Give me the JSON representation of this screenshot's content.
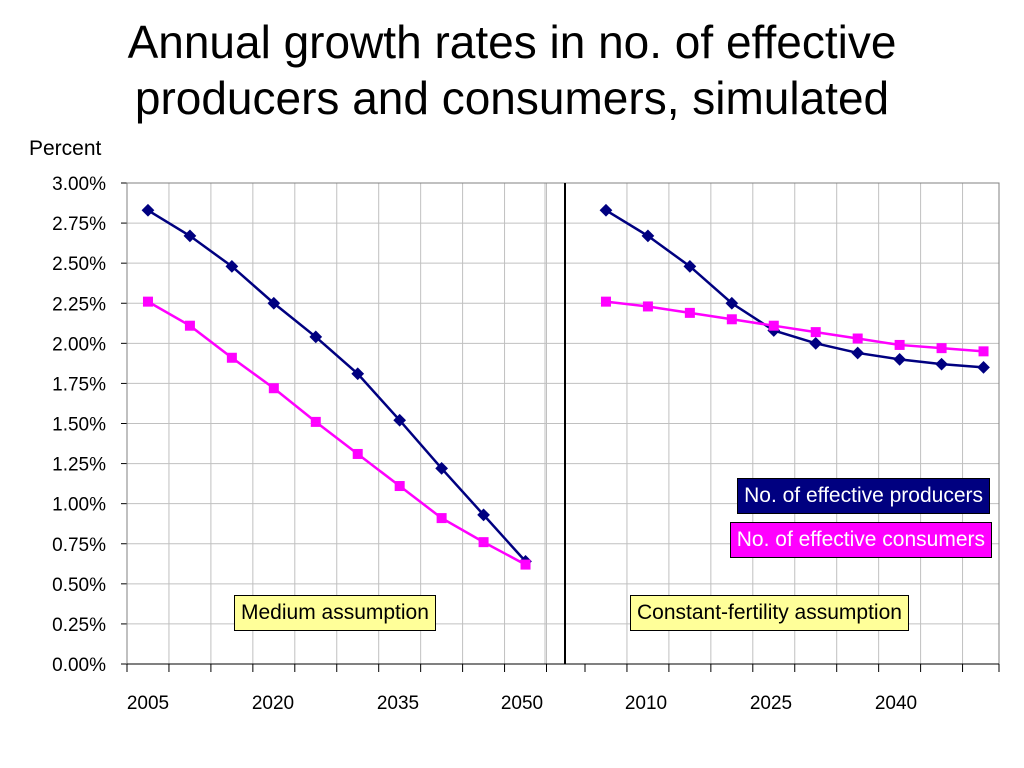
{
  "title_lines": [
    "Annual growth rates in no. of effective",
    "producers and consumers, simulated"
  ],
  "ylabel": "Percent",
  "chart_data": {
    "type": "line",
    "title": "Annual growth rates in no. of effective producers and consumers, simulated",
    "ylabel": "Percent",
    "ylim": [
      0,
      3
    ],
    "yticks": [
      "0.00%",
      "0.25%",
      "0.50%",
      "0.75%",
      "1.00%",
      "1.25%",
      "1.50%",
      "1.75%",
      "2.00%",
      "2.25%",
      "2.50%",
      "2.75%",
      "3.00%"
    ],
    "grid": true,
    "legend_position": "right",
    "colors": {
      "producers": "#000080",
      "consumers": "#ff00ff",
      "annotation": "#ffff99"
    },
    "panels": [
      {
        "annotation": "Medium assumption",
        "x_ticks": [
          "2005",
          "2020",
          "2035",
          "2050"
        ],
        "series": [
          {
            "name": "No. of effective producers",
            "values": [
              2.83,
              2.67,
              2.48,
              2.25,
              2.04,
              1.81,
              1.52,
              1.22,
              0.93,
              0.64
            ]
          },
          {
            "name": "No. of effective consumers",
            "values": [
              2.26,
              2.11,
              1.91,
              1.72,
              1.51,
              1.31,
              1.11,
              0.91,
              0.76,
              0.62
            ]
          }
        ]
      },
      {
        "annotation": "Constant-fertility assumption",
        "x_ticks": [
          "2010",
          "2025",
          "2040"
        ],
        "series": [
          {
            "name": "No. of effective producers",
            "values": [
              2.83,
              2.67,
              2.48,
              2.25,
              2.08,
              2.0,
              1.94,
              1.9,
              1.87,
              1.85
            ]
          },
          {
            "name": "No. of effective consumers",
            "values": [
              2.26,
              2.23,
              2.19,
              2.15,
              2.11,
              2.07,
              2.03,
              1.99,
              1.97,
              1.95
            ]
          }
        ]
      }
    ]
  },
  "legend": {
    "producers": "No. of effective producers",
    "consumers": "No. of effective consumers"
  },
  "annotations": {
    "medium": "Medium assumption",
    "constant": "Constant-fertility assumption"
  }
}
